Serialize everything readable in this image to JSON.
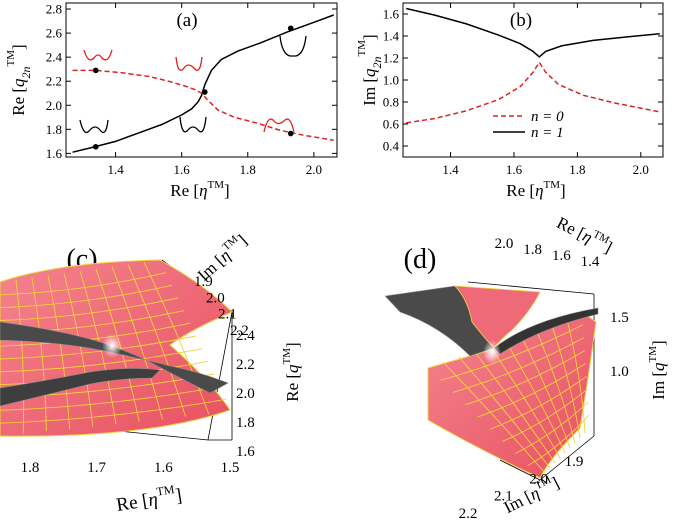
{
  "chart_data": [
    {
      "panel": "(a)",
      "type": "line",
      "xlabel": "Re [η^TM]",
      "ylabel": "Re [q_2n^TM]",
      "xlim": [
        1.25,
        2.07
      ],
      "ylim": [
        1.57,
        2.85
      ],
      "x_ticks": [
        1.4,
        1.6,
        1.8,
        2.0
      ],
      "y_ticks": [
        1.6,
        1.8,
        2.0,
        2.2,
        2.4,
        2.6,
        2.8
      ],
      "x_tick_labels": [
        "1.4",
        "1.6",
        "1.8",
        "2.0"
      ],
      "y_tick_labels": [
        "1.6",
        "1.8",
        "2.0",
        "2.2",
        "2.4",
        "2.6",
        "2.8"
      ],
      "series": [
        {
          "style": "solid",
          "color": "#000000",
          "x": [
            1.27,
            1.33,
            1.4,
            1.47,
            1.54,
            1.6,
            1.63,
            1.65,
            1.66,
            1.67,
            1.69,
            1.72,
            1.77,
            1.84,
            1.92,
            2.0,
            2.06
          ],
          "y": [
            1.61,
            1.65,
            1.7,
            1.77,
            1.84,
            1.92,
            1.97,
            2.03,
            2.08,
            2.17,
            2.29,
            2.38,
            2.45,
            2.52,
            2.61,
            2.69,
            2.75
          ]
        },
        {
          "style": "dashed",
          "color": "#e02020",
          "x": [
            1.27,
            1.34,
            1.42,
            1.5,
            1.56,
            1.61,
            1.64,
            1.66,
            1.68,
            1.71,
            1.76,
            1.83,
            1.9,
            1.97,
            2.06
          ],
          "y": [
            2.29,
            2.29,
            2.27,
            2.24,
            2.2,
            2.16,
            2.13,
            2.1,
            2.04,
            1.96,
            1.9,
            1.85,
            1.79,
            1.75,
            1.71
          ]
        }
      ],
      "markers": [
        {
          "x": 1.34,
          "y": 2.29
        },
        {
          "x": 1.34,
          "y": 1.655
        },
        {
          "x": 1.67,
          "y": 2.11
        },
        {
          "x": 1.93,
          "y": 2.64
        },
        {
          "x": 1.93,
          "y": 1.765
        }
      ]
    },
    {
      "panel": "(b)",
      "type": "line",
      "xlabel": "Re [η^TM]",
      "ylabel": "Im [q_2n^TM]",
      "xlim": [
        1.25,
        2.07
      ],
      "ylim": [
        0.3,
        1.7
      ],
      "x_ticks": [
        1.4,
        1.6,
        1.8,
        2.0
      ],
      "y_ticks": [
        0.4,
        0.6,
        0.8,
        1.0,
        1.2,
        1.4,
        1.6
      ],
      "x_tick_labels": [
        "1.4",
        "1.6",
        "1.8",
        "2.0"
      ],
      "y_tick_labels": [
        "0.4",
        "0.6",
        "0.8",
        "1.0",
        "1.2",
        "1.4",
        "1.6"
      ],
      "legend": [
        "n = 0",
        "n = 1"
      ],
      "series": [
        {
          "name": "n = 0",
          "style": "dashed",
          "color": "#e02020",
          "x": [
            1.26,
            1.35,
            1.45,
            1.55,
            1.62,
            1.66,
            1.68,
            1.7,
            1.74,
            1.82,
            1.92,
            2.06
          ],
          "y": [
            0.61,
            0.65,
            0.72,
            0.82,
            0.94,
            1.07,
            1.16,
            1.07,
            0.96,
            0.86,
            0.79,
            0.71
          ]
        },
        {
          "name": "n = 1",
          "style": "solid",
          "color": "#000000",
          "x": [
            1.26,
            1.35,
            1.45,
            1.55,
            1.62,
            1.66,
            1.68,
            1.7,
            1.75,
            1.85,
            1.95,
            2.06
          ],
          "y": [
            1.65,
            1.59,
            1.51,
            1.41,
            1.33,
            1.26,
            1.21,
            1.26,
            1.31,
            1.36,
            1.39,
            1.42
          ]
        }
      ]
    },
    {
      "panel": "(c)",
      "type": "surface",
      "axis_im_label": "Im [η^TM]",
      "axis_im_ticks": [
        "1.9",
        "2.0",
        "2.1",
        "2.2"
      ],
      "axis_re_label": "Re [η^TM]",
      "axis_re_ticks": [
        "1.8",
        "1.7",
        "1.6",
        "1.5"
      ],
      "axis_q_label": "Re [q^TM]",
      "axis_q_ticks": [
        "2.4",
        "2.2",
        "2.0",
        "1.8",
        "1.6"
      ]
    },
    {
      "panel": "(d)",
      "type": "surface",
      "axis_re_label": "Re [η^TM]",
      "axis_re_ticks": [
        "2.0",
        "1.8",
        "1.6",
        "1.4"
      ],
      "axis_im_label": "Im [η^TM]",
      "axis_im_ticks": [
        "2.2",
        "2.1",
        "2.0",
        "1.9"
      ],
      "axis_q_label": "Im [q^TM]",
      "axis_q_ticks": [
        "1.5",
        "1.0"
      ]
    }
  ],
  "colors": {
    "dashed_line": "#e02020",
    "solid_line": "#000000",
    "surface_red": "#f06a78",
    "surface_dark": "#555555",
    "mesh_yellow": "#f3d23a"
  }
}
